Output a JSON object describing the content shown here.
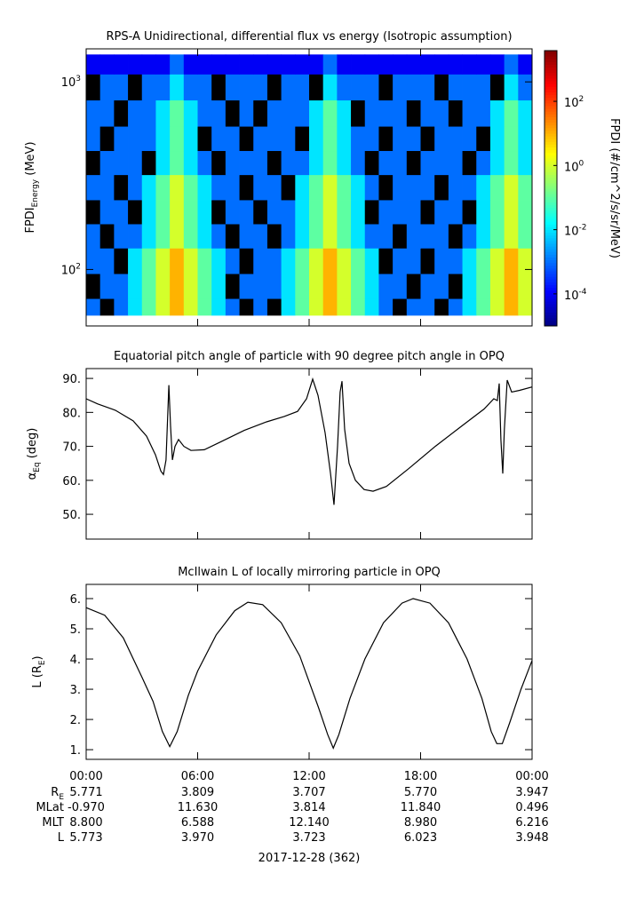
{
  "chart_data": [
    {
      "type": "heatmap",
      "title": "RPS-A Unidirectional, differential flux vs energy (Isotropic assumption)",
      "ylabel": "FPDI_{Energy} (MeV)",
      "zlabel": "FPDI (#/cm^2/s/sr/MeV)",
      "xlim": [
        0,
        24
      ],
      "xticks": [
        0,
        6,
        12,
        18,
        24
      ],
      "ylim": [
        50,
        1500
      ],
      "ylog": true,
      "yticks": [
        {
          "value": 100,
          "label": "10^{2}"
        },
        {
          "value": 1000,
          "label": "10^{3}"
        }
      ],
      "zlim": [
        1e-05,
        3800
      ],
      "zlog": true,
      "zticks": [
        {
          "value": 0.0001,
          "label": "10^{-4}"
        },
        {
          "value": 0.01,
          "label": "10^{-2}"
        },
        {
          "value": 1,
          "label": "10^{0}"
        },
        {
          "value": 100,
          "label": "10^{2}"
        }
      ],
      "xbins": [
        0,
        0.75,
        1.5,
        2.25,
        3,
        3.75,
        4.5,
        5.25,
        6,
        6.75,
        7.5,
        8.25,
        9,
        9.75,
        10.5,
        11.25,
        12,
        12.75,
        13.5,
        14.25,
        15,
        15.75,
        16.5,
        17.25,
        18,
        18.75,
        19.5,
        20.25,
        21,
        21.75,
        22.5,
        23.25,
        24
      ],
      "ybins": [
        57,
        70,
        95,
        130,
        175,
        235,
        320,
        430,
        580,
        800,
        1100,
        1400
      ],
      "z": [
        [
          0.001,
          null,
          0.001,
          0.01,
          0.1,
          1,
          10,
          1,
          0.1,
          0.01,
          0.001,
          null,
          0.001,
          null,
          0.01,
          0.1,
          1,
          10,
          1,
          0.1,
          0.01,
          0.001,
          null,
          0.001,
          0.001,
          null,
          0.001,
          0.01,
          0.1,
          1,
          10,
          1
        ],
        [
          null,
          0.001,
          0.001,
          0.01,
          0.1,
          1,
          10,
          1,
          0.1,
          0.01,
          null,
          0.001,
          0.001,
          0.001,
          0.01,
          0.1,
          1,
          10,
          1,
          0.1,
          0.01,
          0.001,
          0.001,
          null,
          0.001,
          0.001,
          null,
          0.01,
          0.1,
          1,
          10,
          1
        ],
        [
          0.001,
          0.001,
          null,
          0.01,
          0.1,
          1,
          10,
          1,
          0.1,
          0.01,
          0.001,
          null,
          0.001,
          0.001,
          0.01,
          0.1,
          1,
          10,
          1,
          0.1,
          0.01,
          null,
          0.001,
          0.001,
          null,
          0.001,
          0.001,
          0.01,
          0.1,
          1,
          10,
          1
        ],
        [
          0.001,
          null,
          0.001,
          0.001,
          0.01,
          0.1,
          1,
          0.1,
          0.01,
          0.001,
          null,
          0.001,
          0.001,
          null,
          0.001,
          0.01,
          0.1,
          1,
          0.1,
          0.01,
          0.001,
          0.001,
          null,
          0.001,
          0.001,
          0.001,
          null,
          0.001,
          0.01,
          0.1,
          1,
          0.1
        ],
        [
          null,
          0.001,
          0.001,
          null,
          0.01,
          0.1,
          1,
          0.1,
          0.01,
          null,
          0.001,
          0.001,
          null,
          0.001,
          0.001,
          0.01,
          0.1,
          1,
          0.1,
          0.01,
          null,
          0.001,
          0.001,
          0.001,
          null,
          0.001,
          0.001,
          null,
          0.01,
          0.1,
          1,
          0.1
        ],
        [
          0.001,
          0.001,
          null,
          0.001,
          0.01,
          0.1,
          1,
          0.1,
          0.01,
          0.001,
          0.001,
          null,
          0.001,
          0.001,
          null,
          0.01,
          0.1,
          1,
          0.1,
          0.01,
          0.001,
          null,
          0.001,
          0.001,
          0.001,
          null,
          0.001,
          0.001,
          0.01,
          0.1,
          1,
          0.1
        ],
        [
          null,
          0.001,
          0.001,
          0.001,
          null,
          0.01,
          0.1,
          0.01,
          0.001,
          null,
          0.001,
          0.001,
          0.001,
          null,
          0.001,
          0.001,
          0.01,
          0.1,
          0.01,
          0.001,
          null,
          0.001,
          0.001,
          null,
          0.001,
          0.001,
          0.001,
          null,
          0.001,
          0.01,
          0.1,
          0.01
        ],
        [
          0.001,
          null,
          0.001,
          0.001,
          0.001,
          0.01,
          0.1,
          0.01,
          null,
          0.001,
          0.001,
          null,
          0.001,
          0.001,
          0.001,
          null,
          0.01,
          0.1,
          0.01,
          0.001,
          0.001,
          null,
          0.001,
          0.001,
          null,
          0.001,
          0.001,
          0.001,
          null,
          0.01,
          0.1,
          0.01
        ],
        [
          0.001,
          0.001,
          null,
          0.001,
          0.001,
          0.01,
          0.1,
          0.01,
          0.001,
          0.001,
          null,
          0.001,
          null,
          0.001,
          0.001,
          0.001,
          0.01,
          0.1,
          0.01,
          null,
          0.001,
          0.001,
          0.001,
          null,
          0.001,
          0.001,
          null,
          0.001,
          0.001,
          0.01,
          0.1,
          0.01
        ],
        [
          null,
          0.001,
          0.001,
          null,
          0.001,
          0.001,
          0.01,
          0.001,
          0.001,
          null,
          0.001,
          0.001,
          0.001,
          null,
          0.001,
          0.001,
          null,
          0.01,
          0.001,
          0.001,
          0.001,
          null,
          0.001,
          0.001,
          0.001,
          null,
          0.001,
          0.001,
          0.001,
          null,
          0.01,
          0.001
        ],
        [
          0.0001,
          0.0001,
          0.0001,
          0.0001,
          0.0001,
          0.0001,
          0.001,
          0.0001,
          0.0001,
          0.0001,
          0.0001,
          0.0001,
          0.0001,
          0.0001,
          0.0001,
          0.0001,
          0.0001,
          0.001,
          0.0001,
          0.0001,
          0.0001,
          0.0001,
          0.0001,
          0.0001,
          0.0001,
          0.0001,
          0.0001,
          0.0001,
          0.0001,
          0.0001,
          0.001,
          0.0001
        ]
      ]
    },
    {
      "type": "line",
      "title": "Equatorial pitch angle of particle with 90 degree pitch angle in OPQ",
      "ylabel": "α_{Eq} (deg)",
      "color": "#000000",
      "xlim": [
        0,
        24
      ],
      "xticks": [
        0,
        6,
        12,
        18,
        24
      ],
      "ylim": [
        42.7,
        92.9
      ],
      "yticks": [
        {
          "value": 50,
          "label": "50."
        },
        {
          "value": 60,
          "label": "60."
        },
        {
          "value": 70,
          "label": "70."
        },
        {
          "value": 80,
          "label": "80."
        },
        {
          "value": 90,
          "label": "90."
        }
      ],
      "x": [
        0,
        0.62,
        1.58,
        2.53,
        3.25,
        3.73,
        4.02,
        4.16,
        4.3,
        4.45,
        4.54,
        4.64,
        4.78,
        4.97,
        5.26,
        5.64,
        6.36,
        7.31,
        8.51,
        9.71,
        10.66,
        11.38,
        11.86,
        12.19,
        12.48,
        12.86,
        13.15,
        13.34,
        13.53,
        13.67,
        13.77,
        13.91,
        14.15,
        14.49,
        14.96,
        15.44,
        16.16,
        17.35,
        18.79,
        20.22,
        21.42,
        21.94,
        22.13,
        22.23,
        22.32,
        22.42,
        22.51,
        22.66,
        22.9,
        23.33,
        24
      ],
      "values": [
        84,
        82.5,
        80.6,
        77.5,
        73,
        67.5,
        62.7,
        61.7,
        66,
        88,
        76,
        66,
        70,
        72,
        70,
        68.8,
        69,
        71.5,
        74.7,
        77.2,
        78.8,
        80.3,
        84,
        89.8,
        85,
        74,
        62,
        52.8,
        70,
        86,
        89.2,
        75,
        65,
        60,
        57.3,
        56.8,
        58.2,
        63.4,
        70,
        76,
        81,
        84,
        83.5,
        88.5,
        72,
        62,
        75,
        89.5,
        86,
        86.5,
        87.5
      ]
    },
    {
      "type": "line",
      "title": "McIlwain L of locally mirroring particle in OPQ",
      "ylabel": "L (R_{E})",
      "color": "#000000",
      "xlim": [
        0,
        24
      ],
      "xticks": [
        {
          "value": 0,
          "label": "00:00"
        },
        {
          "value": 6,
          "label": "06:00"
        },
        {
          "value": 12,
          "label": "12:00"
        },
        {
          "value": 18,
          "label": "18:00"
        },
        {
          "value": 24,
          "label": "00:00"
        }
      ],
      "ylim": [
        0.68,
        6.47
      ],
      "yticks": [
        {
          "value": 1,
          "label": "1."
        },
        {
          "value": 2,
          "label": "2."
        },
        {
          "value": 3,
          "label": "3."
        },
        {
          "value": 4,
          "label": "4."
        },
        {
          "value": 5,
          "label": "5."
        },
        {
          "value": 6,
          "label": "6."
        }
      ],
      "x": [
        0,
        1,
        2,
        3,
        3.6,
        4.1,
        4.5,
        4.9,
        5.5,
        6,
        7,
        8,
        8.7,
        9.5,
        10.5,
        11.5,
        12.5,
        13,
        13.3,
        13.6,
        14.2,
        15,
        16,
        17,
        17.6,
        18.5,
        19.5,
        20.5,
        21.3,
        21.8,
        22.1,
        22.4,
        22.8,
        23.4,
        24
      ],
      "values": [
        5.7,
        5.45,
        4.7,
        3.4,
        2.6,
        1.6,
        1.1,
        1.6,
        2.8,
        3.6,
        4.8,
        5.6,
        5.88,
        5.8,
        5.2,
        4.1,
        2.4,
        1.5,
        1.05,
        1.5,
        2.7,
        4.0,
        5.2,
        5.85,
        6.0,
        5.85,
        5.2,
        4.0,
        2.7,
        1.6,
        1.2,
        1.2,
        1.9,
        3.0,
        3.95
      ]
    }
  ],
  "ephemeris": {
    "rows": [
      {
        "label": "R_{E}",
        "values": [
          "5.771",
          "3.809",
          "3.707",
          "5.770",
          "3.947"
        ]
      },
      {
        "label": "MLat",
        "values": [
          "-0.970",
          "11.630",
          "3.814",
          "11.840",
          "0.496"
        ]
      },
      {
        "label": "MLT",
        "values": [
          "8.800",
          "6.588",
          "12.140",
          "8.980",
          "6.216"
        ]
      },
      {
        "label": "L",
        "values": [
          "5.773",
          "3.970",
          "3.723",
          "6.023",
          "3.948"
        ]
      }
    ],
    "date": "2017-12-28 (362)"
  }
}
